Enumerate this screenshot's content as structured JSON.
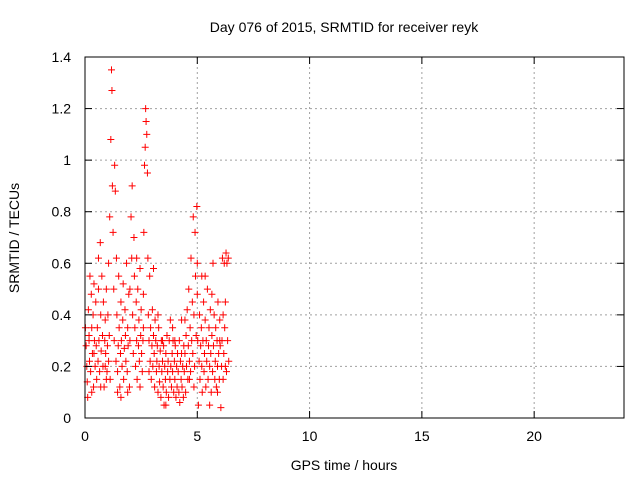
{
  "chart_data": {
    "type": "scatter",
    "title": "Day 076 of 2015, SRMTID for receiver reyk",
    "xlabel": "GPS time / hours",
    "ylabel": "SRMTID / TECUs",
    "xlim": [
      0,
      24
    ],
    "ylim": [
      0,
      1.4
    ],
    "xticks": [
      0,
      5,
      10,
      15,
      20
    ],
    "yticks": [
      0,
      0.2,
      0.4,
      0.6,
      0.8,
      1,
      1.2,
      1.4
    ],
    "xtick_labels": [
      "0",
      "5",
      "10",
      "15",
      "20"
    ],
    "ytick_labels": [
      "0",
      "0.2",
      "0.4",
      "0.6",
      "0.8",
      "1",
      "1.2",
      "1.4"
    ],
    "grid": true,
    "marker": "+",
    "color": "#ff0000",
    "series": [
      {
        "name": "SRMTID",
        "points": [
          [
            0.02,
            0.35
          ],
          [
            0.05,
            0.28
          ],
          [
            0.08,
            0.2
          ],
          [
            0.1,
            0.14
          ],
          [
            0.12,
            0.08
          ],
          [
            0.15,
            0.42
          ],
          [
            0.18,
            0.3
          ],
          [
            0.2,
            0.22
          ],
          [
            0.22,
            0.55
          ],
          [
            0.25,
            0.18
          ],
          [
            0.28,
            0.48
          ],
          [
            0.3,
            0.35
          ],
          [
            0.33,
            0.25
          ],
          [
            0.36,
            0.4
          ],
          [
            0.38,
            0.12
          ],
          [
            0.4,
            0.52
          ],
          [
            0.42,
            0.3
          ],
          [
            0.45,
            0.2
          ],
          [
            0.48,
            0.45
          ],
          [
            0.5,
            0.28
          ],
          [
            0.52,
            0.15
          ],
          [
            0.55,
            0.35
          ],
          [
            0.58,
            0.22
          ],
          [
            0.6,
            0.62
          ],
          [
            0.62,
            0.3
          ],
          [
            0.65,
            0.18
          ],
          [
            0.68,
            0.68
          ],
          [
            0.7,
            0.4
          ],
          [
            0.72,
            0.26
          ],
          [
            0.75,
            0.55
          ],
          [
            0.78,
            0.32
          ],
          [
            0.8,
            0.2
          ],
          [
            0.82,
            0.45
          ],
          [
            0.85,
            0.12
          ],
          [
            0.88,
            0.3
          ],
          [
            0.9,
            0.38
          ],
          [
            0.92,
            0.25
          ],
          [
            0.95,
            0.5
          ],
          [
            0.98,
            0.18
          ],
          [
            1.0,
            0.28
          ],
          [
            1.02,
            0.4
          ],
          [
            1.05,
            0.22
          ],
          [
            1.08,
            0.32
          ],
          [
            1.1,
            0.78
          ],
          [
            1.12,
            0.15
          ],
          [
            1.15,
            1.08
          ],
          [
            1.18,
            1.35
          ],
          [
            1.2,
            1.27
          ],
          [
            1.22,
            0.9
          ],
          [
            1.25,
            0.72
          ],
          [
            1.28,
            0.5
          ],
          [
            1.3,
            0.3
          ],
          [
            1.32,
            0.98
          ],
          [
            1.35,
            0.88
          ],
          [
            1.38,
            0.22
          ],
          [
            1.4,
            0.62
          ],
          [
            1.42,
            0.4
          ],
          [
            1.45,
            0.18
          ],
          [
            1.48,
            0.28
          ],
          [
            1.5,
            0.55
          ],
          [
            1.52,
            0.35
          ],
          [
            1.55,
            0.12
          ],
          [
            1.58,
            0.25
          ],
          [
            1.6,
            0.45
          ],
          [
            1.62,
            0.3
          ],
          [
            1.65,
            0.2
          ],
          [
            1.68,
            0.38
          ],
          [
            1.7,
            0.52
          ],
          [
            1.72,
            0.15
          ],
          [
            1.75,
            0.27
          ],
          [
            1.78,
            0.42
          ],
          [
            1.8,
            0.32
          ],
          [
            1.82,
            0.22
          ],
          [
            1.85,
            0.6
          ],
          [
            1.88,
            0.18
          ],
          [
            1.9,
            0.35
          ],
          [
            1.92,
            0.28
          ],
          [
            1.95,
            0.48
          ],
          [
            1.98,
            0.12
          ],
          [
            2.0,
            0.3
          ],
          [
            2.05,
            0.78
          ],
          [
            2.08,
            0.62
          ],
          [
            2.1,
            0.9
          ],
          [
            2.12,
            0.4
          ],
          [
            2.15,
            0.25
          ],
          [
            2.18,
            0.7
          ],
          [
            2.2,
            0.55
          ],
          [
            2.22,
            0.35
          ],
          [
            2.25,
            0.2
          ],
          [
            2.28,
            0.45
          ],
          [
            2.3,
            0.3
          ],
          [
            2.32,
            0.15
          ],
          [
            2.35,
            0.5
          ],
          [
            2.38,
            0.28
          ],
          [
            2.4,
            0.38
          ],
          [
            2.42,
            0.22
          ],
          [
            2.45,
            0.12
          ],
          [
            2.48,
            0.32
          ],
          [
            2.5,
            0.42
          ],
          [
            2.52,
            0.25
          ],
          [
            2.55,
            0.18
          ],
          [
            2.58,
            0.3
          ],
          [
            2.6,
            0.48
          ],
          [
            2.62,
            0.72
          ],
          [
            2.65,
            0.98
          ],
          [
            2.68,
            1.05
          ],
          [
            2.7,
            1.2
          ],
          [
            2.72,
            1.15
          ],
          [
            2.75,
            1.1
          ],
          [
            2.78,
            0.95
          ],
          [
            2.8,
            0.62
          ],
          [
            2.82,
            0.4
          ],
          [
            2.85,
            0.3
          ],
          [
            2.88,
            0.55
          ],
          [
            2.9,
            0.22
          ],
          [
            2.92,
            0.35
          ],
          [
            2.95,
            0.15
          ],
          [
            2.98,
            0.28
          ],
          [
            3.0,
            0.42
          ],
          [
            3.02,
            0.2
          ],
          [
            3.05,
            0.32
          ],
          [
            3.08,
            0.25
          ],
          [
            3.1,
            0.12
          ],
          [
            3.12,
            0.38
          ],
          [
            3.15,
            0.3
          ],
          [
            3.18,
            0.18
          ],
          [
            3.2,
            0.22
          ],
          [
            3.22,
            0.28
          ],
          [
            3.25,
            0.1
          ],
          [
            3.28,
            0.35
          ],
          [
            3.3,
            0.2
          ],
          [
            3.32,
            0.14
          ],
          [
            3.35,
            0.26
          ],
          [
            3.38,
            0.08
          ],
          [
            3.4,
            0.3
          ],
          [
            3.42,
            0.18
          ],
          [
            3.45,
            0.22
          ],
          [
            3.48,
            0.12
          ],
          [
            3.5,
            0.28
          ],
          [
            3.52,
            0.05
          ],
          [
            3.55,
            0.2
          ],
          [
            3.58,
            0.15
          ],
          [
            3.6,
            0.25
          ],
          [
            3.62,
            0.1
          ],
          [
            3.65,
            0.32
          ],
          [
            3.68,
            0.18
          ],
          [
            3.7,
            0.22
          ],
          [
            3.72,
            0.08
          ],
          [
            3.75,
            0.3
          ],
          [
            3.78,
            0.15
          ],
          [
            3.8,
            0.38
          ],
          [
            3.82,
            0.2
          ],
          [
            3.85,
            0.12
          ],
          [
            3.88,
            0.25
          ],
          [
            3.9,
            0.18
          ],
          [
            3.92,
            0.3
          ],
          [
            3.95,
            0.1
          ],
          [
            3.98,
            0.22
          ],
          [
            4.0,
            0.15
          ],
          [
            4.02,
            0.28
          ],
          [
            4.05,
            0.08
          ],
          [
            4.08,
            0.2
          ],
          [
            4.1,
            0.12
          ],
          [
            4.12,
            0.25
          ],
          [
            4.15,
            0.18
          ],
          [
            4.18,
            0.1
          ],
          [
            4.2,
            0.3
          ],
          [
            4.22,
            0.06
          ],
          [
            4.25,
            0.22
          ],
          [
            4.28,
            0.15
          ],
          [
            4.3,
            0.38
          ],
          [
            4.32,
            0.12
          ],
          [
            4.35,
            0.2
          ],
          [
            4.38,
            0.08
          ],
          [
            4.4,
            0.28
          ],
          [
            4.42,
            0.18
          ],
          [
            4.45,
            0.25
          ],
          [
            4.48,
            0.1
          ],
          [
            4.5,
            0.32
          ],
          [
            4.52,
            0.2
          ],
          [
            4.55,
            0.42
          ],
          [
            4.58,
            0.15
          ],
          [
            4.6,
            0.28
          ],
          [
            4.62,
            0.5
          ],
          [
            4.65,
            0.22
          ],
          [
            4.68,
            0.35
          ],
          [
            4.7,
            0.18
          ],
          [
            4.72,
            0.62
          ],
          [
            4.75,
            0.3
          ],
          [
            4.78,
            0.45
          ],
          [
            4.8,
            0.25
          ],
          [
            4.82,
            0.78
          ],
          [
            4.85,
            0.4
          ],
          [
            4.88,
            0.2
          ],
          [
            4.9,
            0.72
          ],
          [
            4.92,
            0.55
          ],
          [
            4.95,
            0.32
          ],
          [
            4.98,
            0.82
          ],
          [
            5.0,
            0.48
          ],
          [
            5.02,
            0.3
          ],
          [
            5.05,
            0.05
          ],
          [
            5.08,
            0.22
          ],
          [
            5.1,
            0.4
          ],
          [
            5.12,
            0.15
          ],
          [
            5.15,
            0.28
          ],
          [
            5.18,
            0.35
          ],
          [
            5.2,
            0.2
          ],
          [
            5.22,
            0.1
          ],
          [
            5.25,
            0.3
          ],
          [
            5.28,
            0.45
          ],
          [
            5.3,
            0.18
          ],
          [
            5.32,
            0.25
          ],
          [
            5.35,
            0.38
          ],
          [
            5.38,
            0.12
          ],
          [
            5.4,
            0.3
          ],
          [
            5.42,
            0.22
          ],
          [
            5.45,
            0.5
          ],
          [
            5.48,
            0.15
          ],
          [
            5.5,
            0.28
          ],
          [
            5.52,
            0.35
          ],
          [
            5.55,
            0.2
          ],
          [
            5.58,
            0.42
          ],
          [
            5.6,
            0.25
          ],
          [
            5.62,
            0.1
          ],
          [
            5.65,
            0.32
          ],
          [
            5.68,
            0.18
          ],
          [
            5.7,
            0.6
          ],
          [
            5.72,
            0.28
          ],
          [
            5.75,
            0.4
          ],
          [
            5.78,
            0.15
          ],
          [
            5.8,
            0.22
          ],
          [
            5.82,
            0.35
          ],
          [
            5.85,
            0.12
          ],
          [
            5.88,
            0.3
          ],
          [
            5.9,
            0.2
          ],
          [
            5.92,
            0.45
          ],
          [
            5.95,
            0.25
          ],
          [
            5.98,
            0.15
          ],
          [
            6.0,
            0.38
          ],
          [
            6.02,
            0.28
          ],
          [
            6.05,
            0.04
          ],
          [
            6.08,
            0.2
          ],
          [
            6.1,
            0.3
          ],
          [
            6.12,
            0.62
          ],
          [
            6.15,
            0.15
          ],
          [
            6.18,
            0.25
          ],
          [
            6.2,
            0.6
          ],
          [
            6.22,
            0.35
          ],
          [
            6.25,
            0.2
          ],
          [
            6.28,
            0.64
          ],
          [
            6.3,
            0.18
          ],
          [
            6.32,
            0.6
          ],
          [
            6.35,
            0.3
          ],
          [
            6.38,
            0.62
          ],
          [
            6.4,
            0.22
          ],
          [
            0.3,
            0.1
          ],
          [
            0.6,
            0.5
          ],
          [
            0.95,
            0.15
          ],
          [
            1.6,
            0.08
          ],
          [
            1.9,
            0.1
          ],
          [
            2.3,
            0.62
          ],
          [
            2.6,
            0.35
          ],
          [
            3.05,
            0.58
          ],
          [
            3.45,
            0.3
          ],
          [
            3.9,
            0.35
          ],
          [
            4.3,
            0.25
          ],
          [
            4.65,
            0.15
          ],
          [
            5.0,
            0.6
          ],
          [
            5.35,
            0.55
          ],
          [
            5.65,
            0.48
          ],
          [
            6.0,
            0.3
          ],
          [
            6.25,
            0.45
          ],
          [
            0.4,
            0.25
          ],
          [
            0.7,
            0.12
          ],
          [
            1.05,
            0.6
          ],
          [
            1.45,
            0.1
          ],
          [
            2.0,
            0.5
          ],
          [
            2.45,
            0.58
          ],
          [
            2.85,
            0.18
          ],
          [
            3.25,
            0.4
          ],
          [
            3.6,
            0.05
          ],
          [
            4.0,
            0.3
          ],
          [
            4.45,
            0.38
          ],
          [
            4.85,
            0.12
          ],
          [
            5.2,
            0.55
          ],
          [
            5.55,
            0.05
          ],
          [
            5.9,
            0.1
          ],
          [
            6.15,
            0.4
          ],
          [
            0.18,
            0.32
          ],
          [
            0.9,
            0.2
          ]
        ]
      }
    ]
  }
}
